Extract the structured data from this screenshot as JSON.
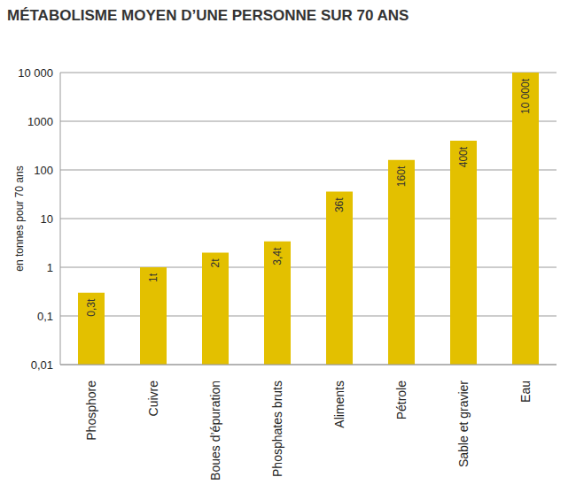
{
  "chart_data": {
    "type": "bar",
    "title": "MÉTABOLISME MOYEN D’UNE PERSONNE SUR 70 ANS",
    "y_label": "en tonnes pour 70 ans",
    "categories": [
      "Phosphore",
      "Cuivre",
      "Boues d’épuration",
      "Phosphates bruts",
      "Aliments",
      "Pétrole",
      "Sable et gravier",
      "Eau"
    ],
    "values": [
      0.3,
      1,
      2,
      3.4,
      36,
      160,
      400,
      10000
    ],
    "value_labels": [
      "0,3t",
      "1t",
      "2t",
      "3,4t",
      "36t",
      "160t",
      "400t",
      "10 000t"
    ],
    "data_labels": true,
    "color": "#e3c000",
    "log": "y",
    "ylim": [
      0.01,
      10000
    ],
    "yticks": [
      {
        "value": 0.01,
        "label": "0,01"
      },
      {
        "value": 0.1,
        "label": "0,1"
      },
      1,
      10,
      100,
      1000,
      {
        "value": 10000,
        "label": "10 000"
      }
    ],
    "grid": true
  }
}
